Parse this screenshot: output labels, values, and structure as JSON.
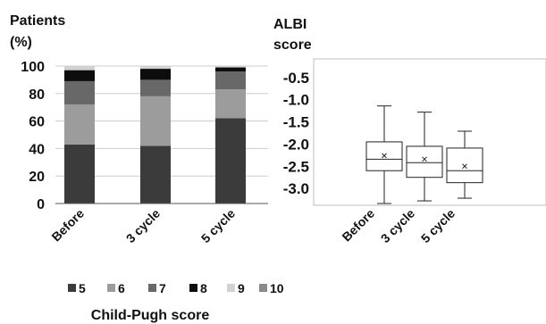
{
  "chart_data": [
    {
      "type": "bar",
      "stacked": true,
      "ylabel_line1": "Patients",
      "ylabel_line2": "(%)",
      "ylim": [
        0,
        100
      ],
      "yticks": [
        0,
        20,
        40,
        60,
        80,
        100
      ],
      "categories": [
        "Before",
        "3 cycle",
        "5 cycle"
      ],
      "legend_title": "Child-Pugh score",
      "legend_placement": "bottom",
      "grid": "horizontal",
      "series": [
        {
          "name": "5",
          "color": "#3b3b3b",
          "values": [
            43,
            42,
            62
          ]
        },
        {
          "name": "6",
          "color": "#9c9c9c",
          "values": [
            29,
            36,
            21
          ]
        },
        {
          "name": "7",
          "color": "#686868",
          "values": [
            17,
            12,
            13
          ]
        },
        {
          "name": "8",
          "color": "#0d0d0d",
          "values": [
            8,
            8,
            3
          ]
        },
        {
          "name": "9",
          "color": "#d2d2d2",
          "values": [
            3,
            2,
            1
          ]
        },
        {
          "name": "10",
          "color": "#8a8a8a",
          "values": [
            0,
            0,
            0
          ]
        }
      ]
    },
    {
      "type": "boxplot",
      "ylabel_line1": "ALBI",
      "ylabel_line2": "score",
      "ylim": [
        -3.4,
        -0.1
      ],
      "yticks": [
        -0.5,
        -1.0,
        -1.5,
        -2.0,
        -2.5,
        -3.0
      ],
      "ytick_labels": [
        "-0.5",
        "-1.0",
        "-1.5",
        "-2.0",
        "-2.5",
        "-3.0"
      ],
      "categories": [
        "Before",
        "3 cycle",
        "5 cycle"
      ],
      "grid": false,
      "boxes": [
        {
          "min": -3.36,
          "q1": -2.62,
          "median": -2.36,
          "q3": -1.97,
          "max": -1.16,
          "mean": -2.28
        },
        {
          "min": -3.3,
          "q1": -2.77,
          "median": -2.44,
          "q3": -2.07,
          "max": -1.3,
          "mean": -2.36
        },
        {
          "min": -3.24,
          "q1": -2.89,
          "median": -2.62,
          "q3": -2.11,
          "max": -1.73,
          "mean": -2.52
        }
      ]
    }
  ]
}
